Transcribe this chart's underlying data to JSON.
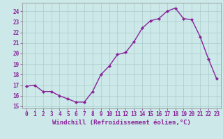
{
  "x": [
    0,
    1,
    2,
    3,
    4,
    5,
    6,
    7,
    8,
    9,
    10,
    11,
    12,
    13,
    14,
    15,
    16,
    17,
    18,
    19,
    20,
    21,
    22,
    23
  ],
  "y": [
    16.9,
    17.0,
    16.4,
    16.4,
    16.0,
    15.7,
    15.4,
    15.4,
    16.4,
    18.0,
    18.8,
    19.9,
    20.1,
    21.1,
    22.4,
    23.1,
    23.3,
    24.0,
    24.3,
    23.3,
    23.2,
    21.6,
    19.5,
    17.6
  ],
  "line_color": "#882299",
  "marker": "D",
  "marker_size": 2.2,
  "linewidth": 1.0,
  "background_color": "#cce8e8",
  "grid_color": "#aacccc",
  "xlabel": "Windchill (Refroidissement éolien,°C)",
  "xlabel_fontsize": 6.5,
  "tick_color": "#882299",
  "tick_fontsize": 5.5,
  "xlim": [
    -0.5,
    23.5
  ],
  "ylim": [
    14.8,
    24.8
  ],
  "yticks": [
    15,
    16,
    17,
    18,
    19,
    20,
    21,
    22,
    23,
    24
  ],
  "xticks": [
    0,
    1,
    2,
    3,
    4,
    5,
    6,
    7,
    8,
    9,
    10,
    11,
    12,
    13,
    14,
    15,
    16,
    17,
    18,
    19,
    20,
    21,
    22,
    23
  ]
}
